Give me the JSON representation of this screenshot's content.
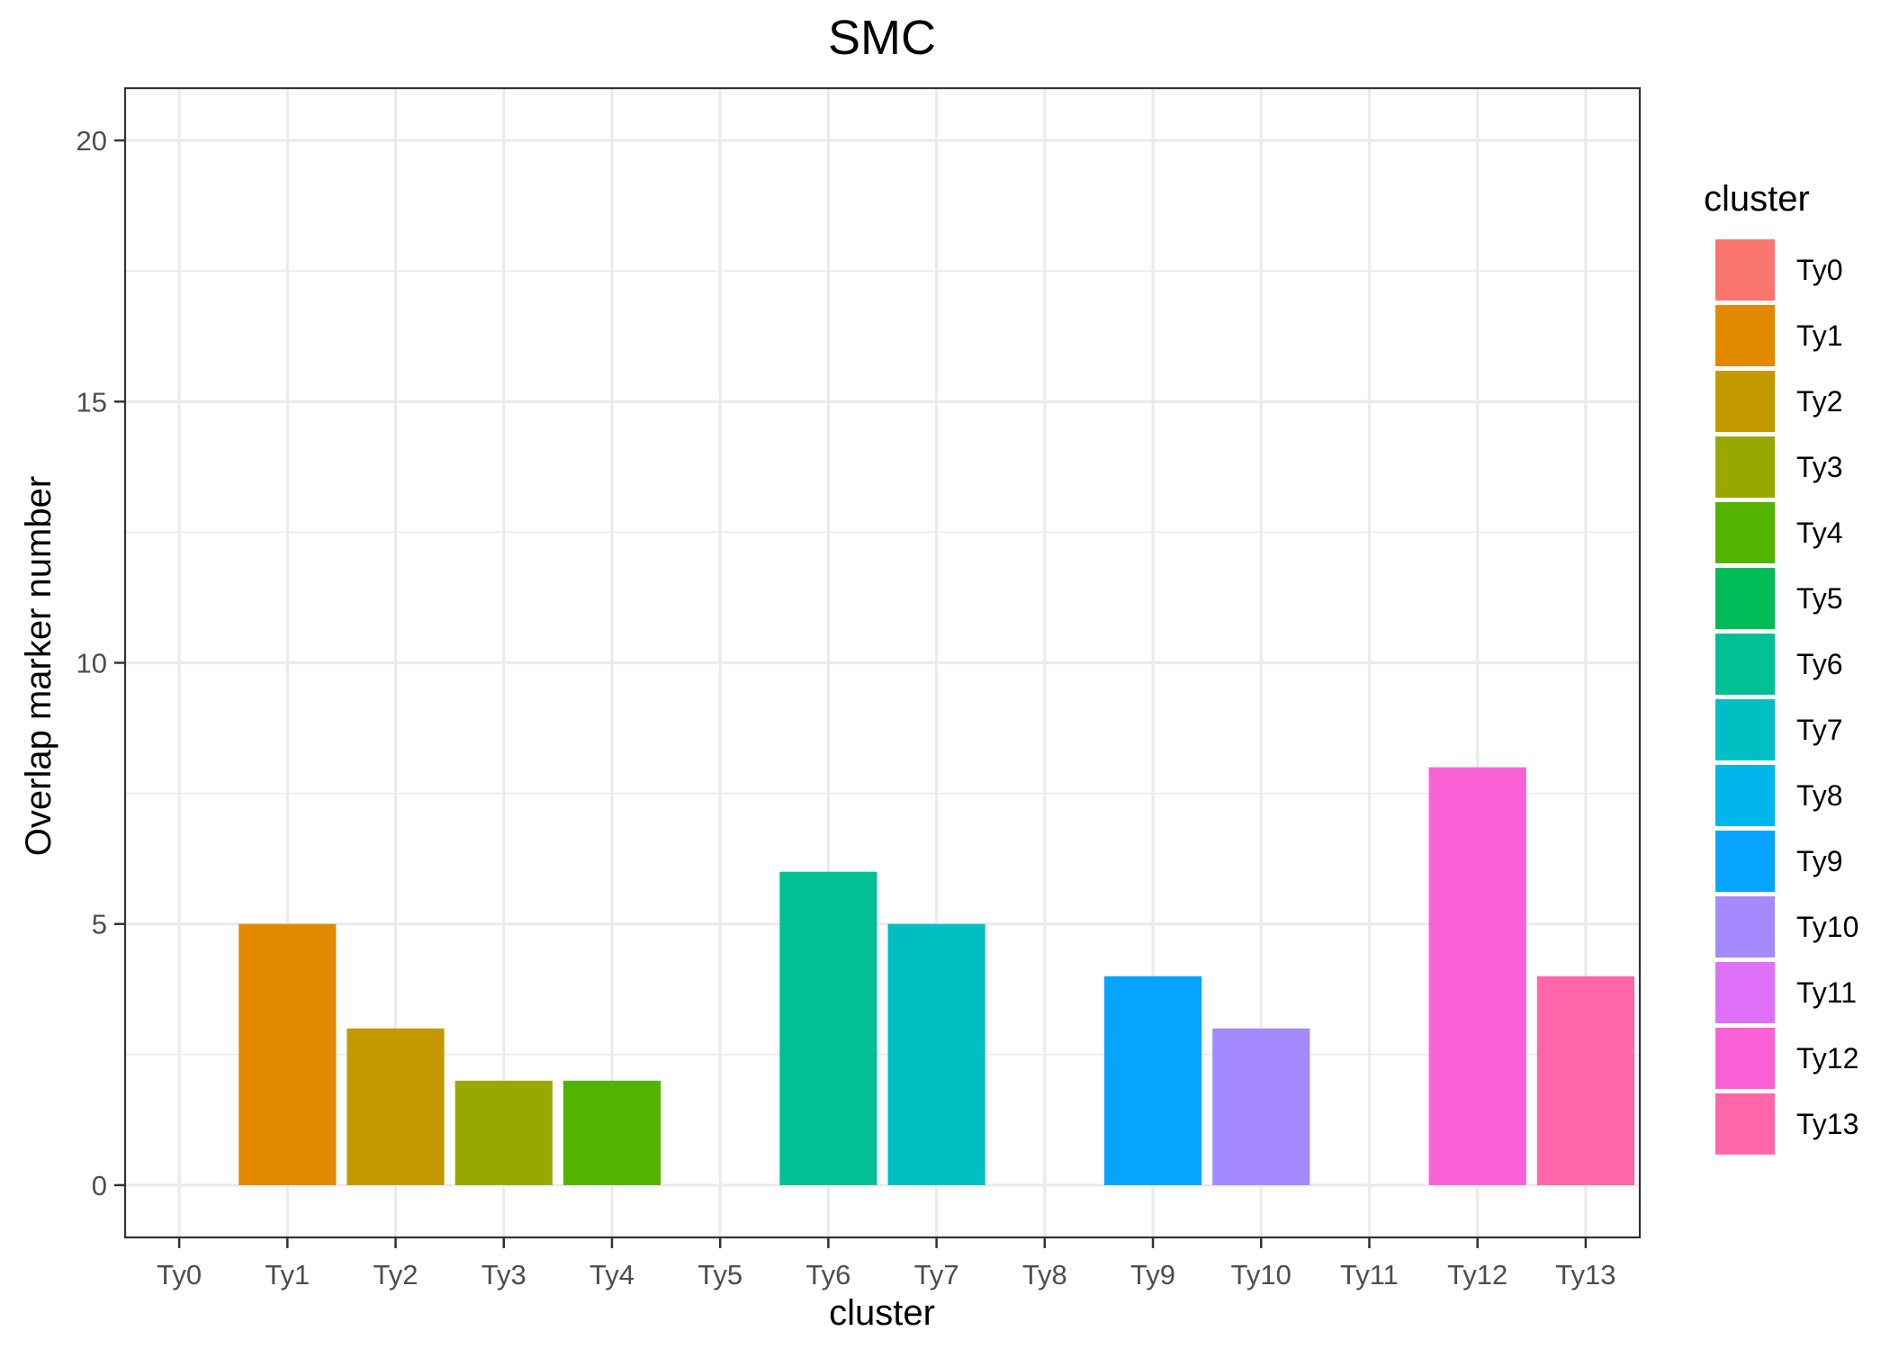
{
  "chart_data": {
    "type": "bar",
    "title": "SMC",
    "xlabel": "cluster",
    "ylabel": "Overlap marker number",
    "categories": [
      "Ty0",
      "Ty1",
      "Ty2",
      "Ty3",
      "Ty4",
      "Ty5",
      "Ty6",
      "Ty7",
      "Ty8",
      "Ty9",
      "Ty10",
      "Ty11",
      "Ty12",
      "Ty13"
    ],
    "values": [
      0,
      5,
      3,
      2,
      2,
      0,
      6,
      5,
      0,
      4,
      3,
      0,
      8,
      4
    ],
    "colors": [
      "#F8766D",
      "#E38900",
      "#C49A00",
      "#99A800",
      "#53B400",
      "#00BC56",
      "#00C094",
      "#00BFC4",
      "#00B6EB",
      "#06A4FF",
      "#A58AFF",
      "#DF70F8",
      "#FB61D7",
      "#FF66A8"
    ],
    "ylim": [
      -1,
      21
    ],
    "yticks": [
      0,
      5,
      10,
      15,
      20
    ],
    "grid": true,
    "legend": {
      "title": "cluster",
      "position": "right"
    }
  }
}
